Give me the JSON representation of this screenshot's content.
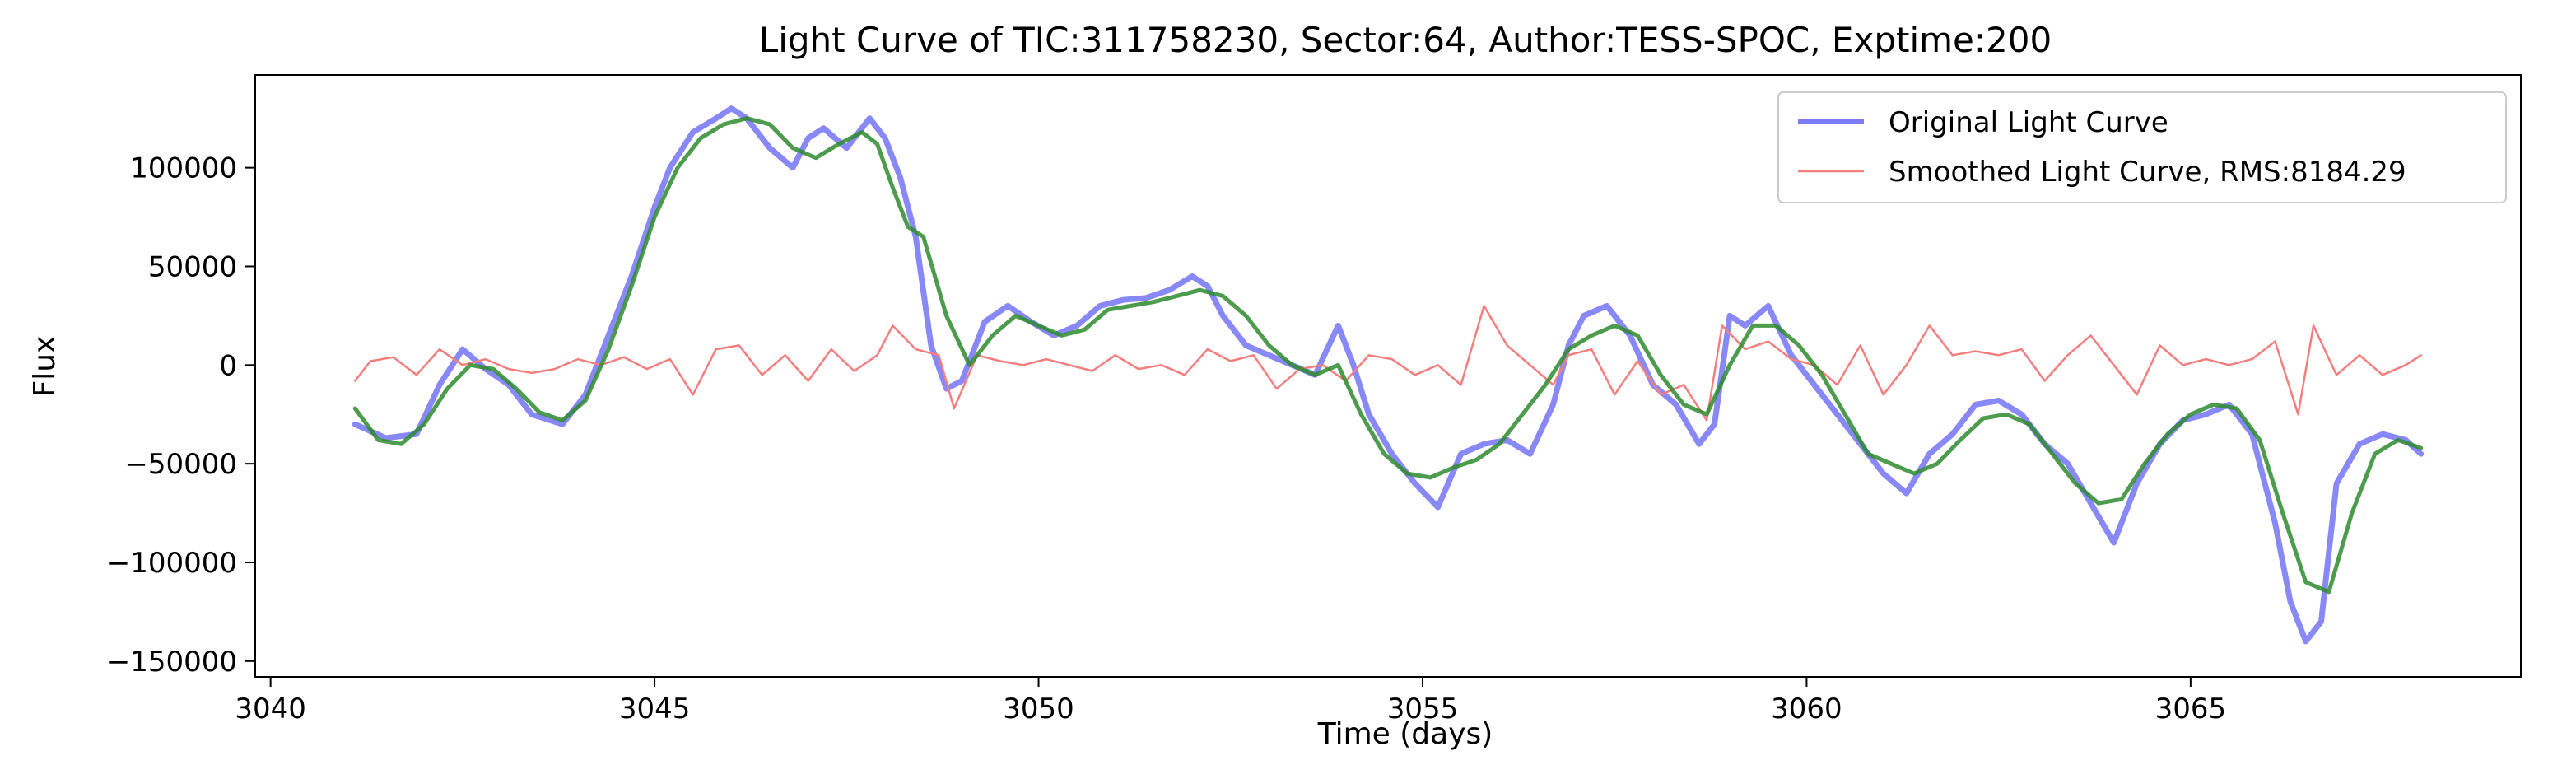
{
  "chart_data": {
    "type": "line",
    "title": "Light Curve of TIC:311758230, Sector:64, Author:TESS-SPOC, Exptime:200",
    "xlabel": "Time (days)",
    "ylabel": "Flux",
    "xlim": [
      3039.8,
      3069.3
    ],
    "ylim": [
      -158000,
      147000
    ],
    "xticks": [
      3040,
      3045,
      3050,
      3055,
      3060,
      3065
    ],
    "xtick_labels": [
      "3040",
      "3045",
      "3050",
      "3055",
      "3060",
      "3065"
    ],
    "yticks": [
      -150000,
      -100000,
      -50000,
      0,
      50000,
      100000
    ],
    "ytick_labels": [
      "−150000",
      "−100000",
      "−50000",
      "0",
      "50000",
      "100000"
    ],
    "grid": false,
    "legend": {
      "placement": "top-right",
      "entries": [
        "Original Light Curve",
        "Smoothed Light Curve, RMS:8184.29"
      ]
    },
    "series": [
      {
        "name": "Original Light Curve",
        "color": "#7b7bf5",
        "x": [
          3041.1,
          3041.5,
          3041.9,
          3042.2,
          3042.5,
          3042.8,
          3043.1,
          3043.4,
          3043.8,
          3044.1,
          3044.4,
          3044.7,
          3045.0,
          3045.2,
          3045.5,
          3045.8,
          3046.0,
          3046.2,
          3046.5,
          3046.8,
          3047.0,
          3047.2,
          3047.5,
          3047.8,
          3048.0,
          3048.2,
          3048.4,
          3048.6,
          3048.8,
          3049.0,
          3049.3,
          3049.6,
          3049.9,
          3050.2,
          3050.5,
          3050.8,
          3051.1,
          3051.4,
          3051.7,
          3052.0,
          3052.2,
          3052.4,
          3052.7,
          3053.0,
          3053.3,
          3053.6,
          3053.9,
          3054.1,
          3054.3,
          3054.6,
          3054.9,
          3055.2,
          3055.5,
          3055.8,
          3056.1,
          3056.4,
          3056.7,
          3056.9,
          3057.1,
          3057.4,
          3057.7,
          3058.0,
          3058.3,
          3058.6,
          3058.8,
          3059.0,
          3059.2,
          3059.5,
          3059.8,
          3060.1,
          3060.4,
          3060.7,
          3061.0,
          3061.3,
          3061.6,
          3061.9,
          3062.2,
          3062.5,
          3062.8,
          3063.1,
          3063.4,
          3063.7,
          3064.0,
          3064.3,
          3064.6,
          3064.9,
          3065.2,
          3065.5,
          3065.8,
          3066.1,
          3066.3,
          3066.5,
          3066.7,
          3066.9,
          3067.2,
          3067.5,
          3067.8,
          3068.0
        ],
        "values": [
          -30000,
          -37000,
          -35000,
          -10000,
          8000,
          -2000,
          -10000,
          -25000,
          -30000,
          -15000,
          15000,
          45000,
          80000,
          100000,
          118000,
          125000,
          130000,
          125000,
          110000,
          100000,
          115000,
          120000,
          110000,
          125000,
          115000,
          95000,
          65000,
          10000,
          -12000,
          -8000,
          22000,
          30000,
          22000,
          15000,
          20000,
          30000,
          33000,
          34000,
          38000,
          45000,
          40000,
          25000,
          10000,
          5000,
          0,
          -5000,
          20000,
          0,
          -25000,
          -45000,
          -60000,
          -72000,
          -45000,
          -40000,
          -38000,
          -45000,
          -20000,
          10000,
          25000,
          30000,
          15000,
          -10000,
          -20000,
          -40000,
          -30000,
          25000,
          20000,
          30000,
          5000,
          -10000,
          -25000,
          -40000,
          -55000,
          -65000,
          -45000,
          -35000,
          -20000,
          -18000,
          -25000,
          -40000,
          -50000,
          -70000,
          -90000,
          -60000,
          -40000,
          -28000,
          -25000,
          -20000,
          -35000,
          -80000,
          -120000,
          -140000,
          -130000,
          -60000,
          -40000,
          -35000,
          -38000,
          -45000
        ]
      },
      {
        "name": "Smoothed Light Curve, RMS:8184.29",
        "color": "#f47e7e",
        "x": [
          3041.1,
          3041.3,
          3041.6,
          3041.9,
          3042.2,
          3042.5,
          3042.8,
          3043.1,
          3043.4,
          3043.7,
          3044.0,
          3044.3,
          3044.6,
          3044.9,
          3045.2,
          3045.5,
          3045.8,
          3046.1,
          3046.4,
          3046.7,
          3047.0,
          3047.3,
          3047.6,
          3047.9,
          3048.1,
          3048.4,
          3048.7,
          3048.9,
          3049.2,
          3049.5,
          3049.8,
          3050.1,
          3050.4,
          3050.7,
          3051.0,
          3051.3,
          3051.6,
          3051.9,
          3052.2,
          3052.5,
          3052.8,
          3053.1,
          3053.4,
          3053.7,
          3054.0,
          3054.3,
          3054.6,
          3054.9,
          3055.2,
          3055.5,
          3055.8,
          3056.1,
          3056.4,
          3056.7,
          3056.9,
          3057.2,
          3057.5,
          3057.8,
          3058.1,
          3058.4,
          3058.7,
          3058.9,
          3059.2,
          3059.5,
          3059.8,
          3060.1,
          3060.4,
          3060.7,
          3061.0,
          3061.3,
          3061.6,
          3061.9,
          3062.2,
          3062.5,
          3062.8,
          3063.1,
          3063.4,
          3063.7,
          3064.0,
          3064.3,
          3064.6,
          3064.9,
          3065.2,
          3065.5,
          3065.8,
          3066.1,
          3066.4,
          3066.6,
          3066.9,
          3067.2,
          3067.5,
          3067.8,
          3068.0
        ],
        "values": [
          -8000,
          2000,
          4000,
          -5000,
          8000,
          0,
          3000,
          -2000,
          -4000,
          -2000,
          3000,
          0,
          4000,
          -2000,
          3000,
          -15000,
          8000,
          10000,
          -5000,
          5000,
          -8000,
          8000,
          -3000,
          5000,
          20000,
          8000,
          5000,
          -22000,
          5000,
          2000,
          0,
          3000,
          0,
          -3000,
          5000,
          -2000,
          0,
          -5000,
          8000,
          2000,
          5000,
          -12000,
          -2000,
          0,
          -8000,
          5000,
          3000,
          -5000,
          0,
          -10000,
          30000,
          10000,
          0,
          -10000,
          5000,
          8000,
          -15000,
          2000,
          -15000,
          -10000,
          -28000,
          20000,
          8000,
          12000,
          3000,
          0,
          -10000,
          10000,
          -15000,
          0,
          20000,
          5000,
          7000,
          5000,
          8000,
          -8000,
          5000,
          15000,
          0,
          -15000,
          10000,
          0,
          3000,
          0,
          3000,
          12000,
          -25000,
          20000,
          -5000,
          5000,
          -5000,
          0,
          5000
        ]
      },
      {
        "color": "#2e8b2e",
        "x": [
          3041.1,
          3041.4,
          3041.7,
          3042.0,
          3042.3,
          3042.6,
          3042.9,
          3043.2,
          3043.5,
          3043.8,
          3044.1,
          3044.4,
          3044.7,
          3045.0,
          3045.3,
          3045.6,
          3045.9,
          3046.2,
          3046.5,
          3046.8,
          3047.1,
          3047.4,
          3047.7,
          3047.9,
          3048.1,
          3048.3,
          3048.5,
          3048.8,
          3049.1,
          3049.4,
          3049.7,
          3050.0,
          3050.3,
          3050.6,
          3050.9,
          3051.2,
          3051.5,
          3051.8,
          3052.1,
          3052.4,
          3052.7,
          3053.0,
          3053.3,
          3053.6,
          3053.9,
          3054.2,
          3054.5,
          3054.8,
          3055.1,
          3055.4,
          3055.7,
          3056.0,
          3056.3,
          3056.6,
          3056.9,
          3057.2,
          3057.5,
          3057.8,
          3058.1,
          3058.4,
          3058.7,
          3059.0,
          3059.3,
          3059.6,
          3059.9,
          3060.2,
          3060.5,
          3060.8,
          3061.1,
          3061.4,
          3061.7,
          3062.0,
          3062.3,
          3062.6,
          3062.9,
          3063.2,
          3063.5,
          3063.8,
          3064.1,
          3064.4,
          3064.7,
          3065.0,
          3065.3,
          3065.6,
          3065.9,
          3066.2,
          3066.5,
          3066.8,
          3067.1,
          3067.4,
          3067.7,
          3068.0
        ],
        "values": [
          -22000,
          -38000,
          -40000,
          -30000,
          -12000,
          0,
          -2000,
          -12000,
          -24000,
          -28000,
          -18000,
          8000,
          40000,
          75000,
          100000,
          115000,
          122000,
          125000,
          122000,
          110000,
          105000,
          112000,
          118000,
          112000,
          90000,
          70000,
          65000,
          25000,
          0,
          15000,
          25000,
          20000,
          15000,
          18000,
          28000,
          30000,
          32000,
          35000,
          38000,
          35000,
          25000,
          10000,
          0,
          -5000,
          0,
          -25000,
          -45000,
          -55000,
          -57000,
          -52000,
          -48000,
          -40000,
          -25000,
          -10000,
          8000,
          15000,
          20000,
          15000,
          -5000,
          -20000,
          -25000,
          0,
          20000,
          20000,
          10000,
          -5000,
          -25000,
          -45000,
          -50000,
          -55000,
          -50000,
          -38000,
          -27000,
          -25000,
          -30000,
          -45000,
          -60000,
          -70000,
          -68000,
          -50000,
          -35000,
          -25000,
          -20000,
          -22000,
          -38000,
          -75000,
          -110000,
          -115000,
          -75000,
          -45000,
          -38000,
          -42000
        ]
      }
    ]
  }
}
